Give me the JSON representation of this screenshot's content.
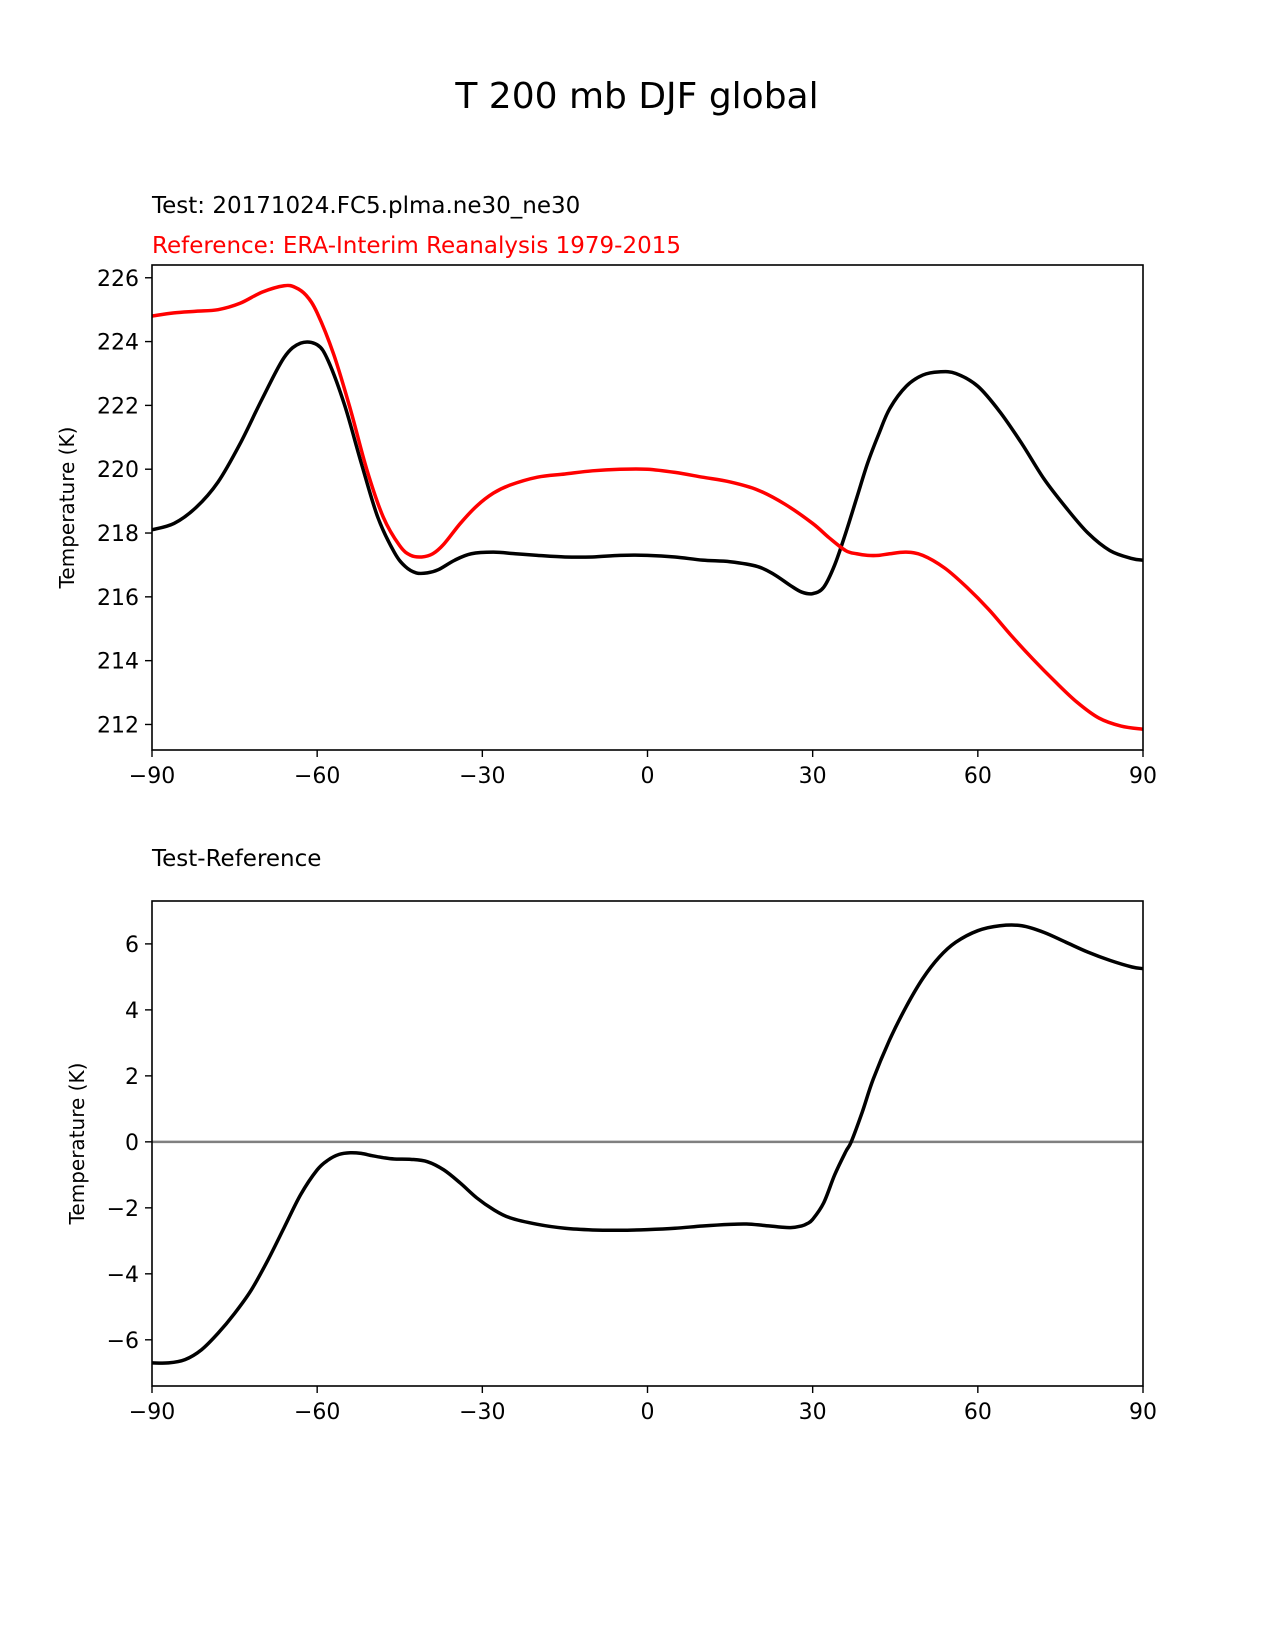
{
  "figure_title": "T 200 mb DJF global",
  "chart_data": [
    {
      "type": "line",
      "title_test": "Test: 20171024.FC5.plma.ne30_ne30",
      "title_reference": "Reference: ERA-Interim Reanalysis 1979-2015",
      "xlabel": "",
      "ylabel": "Temperature (K)",
      "xlim": [
        -90,
        90
      ],
      "ylim": [
        211.2,
        226.4
      ],
      "xticks": [
        -90,
        -60,
        -30,
        0,
        30,
        60,
        90
      ],
      "xtick_labels": [
        "−90",
        "−60",
        "−30",
        "0",
        "30",
        "60",
        "90"
      ],
      "yticks": [
        212,
        214,
        216,
        218,
        220,
        222,
        224,
        226
      ],
      "ytick_labels": [
        "212",
        "214",
        "216",
        "218",
        "220",
        "222",
        "224",
        "226"
      ],
      "series": [
        {
          "name": "Test",
          "color": "#000000",
          "x": [
            -90,
            -86,
            -82,
            -78,
            -74,
            -70,
            -66,
            -63,
            -60,
            -58,
            -55,
            -52,
            -49,
            -46,
            -44,
            -42,
            -40,
            -38,
            -35,
            -32,
            -28,
            -24,
            -20,
            -15,
            -10,
            -5,
            0,
            5,
            10,
            15,
            20,
            23,
            26,
            28,
            30,
            32,
            34,
            36,
            38,
            40,
            42,
            44,
            47,
            50,
            53,
            56,
            60,
            64,
            68,
            72,
            76,
            80,
            84,
            88,
            90
          ],
          "y": [
            218.1,
            218.3,
            218.8,
            219.6,
            220.8,
            222.2,
            223.5,
            223.95,
            223.9,
            223.4,
            222.0,
            220.2,
            218.5,
            217.4,
            216.95,
            216.75,
            216.75,
            216.85,
            217.15,
            217.35,
            217.4,
            217.35,
            217.3,
            217.25,
            217.25,
            217.3,
            217.3,
            217.25,
            217.15,
            217.1,
            216.95,
            216.7,
            216.35,
            216.15,
            216.1,
            216.3,
            217.0,
            218.0,
            219.1,
            220.2,
            221.1,
            221.9,
            222.6,
            222.95,
            223.05,
            223.0,
            222.6,
            221.8,
            220.8,
            219.7,
            218.8,
            218.0,
            217.45,
            217.2,
            217.15
          ]
        },
        {
          "name": "Reference",
          "color": "#ff0000",
          "x": [
            -90,
            -86,
            -82,
            -78,
            -74,
            -70,
            -66,
            -64,
            -62,
            -60,
            -57,
            -54,
            -51,
            -48,
            -45,
            -43,
            -41,
            -39,
            -37,
            -34,
            -31,
            -28,
            -25,
            -20,
            -15,
            -10,
            -5,
            0,
            5,
            10,
            15,
            20,
            25,
            30,
            33,
            36,
            38,
            40,
            42,
            44,
            47,
            50,
            54,
            58,
            62,
            66,
            70,
            74,
            78,
            82,
            86,
            90
          ],
          "y": [
            224.8,
            224.9,
            224.95,
            225.0,
            225.2,
            225.55,
            225.75,
            225.7,
            225.45,
            224.9,
            223.6,
            221.9,
            220.0,
            218.5,
            217.6,
            217.3,
            217.25,
            217.35,
            217.65,
            218.3,
            218.85,
            219.25,
            219.5,
            219.75,
            219.85,
            219.95,
            220.0,
            220.0,
            219.9,
            219.75,
            219.6,
            219.35,
            218.9,
            218.3,
            217.85,
            217.45,
            217.35,
            217.3,
            217.3,
            217.35,
            217.4,
            217.3,
            216.9,
            216.3,
            215.6,
            214.8,
            214.05,
            213.35,
            212.7,
            212.2,
            211.95,
            211.85
          ]
        }
      ]
    },
    {
      "type": "line",
      "title": "Test-Reference",
      "xlabel": "",
      "ylabel": "Temperature (K)",
      "xlim": [
        -90,
        90
      ],
      "ylim": [
        -7.4,
        7.3
      ],
      "xticks": [
        -90,
        -60,
        -30,
        0,
        30,
        60,
        90
      ],
      "xtick_labels": [
        "−90",
        "−60",
        "−30",
        "0",
        "30",
        "60",
        "90"
      ],
      "yticks": [
        -6,
        -4,
        -2,
        0,
        2,
        4,
        6
      ],
      "ytick_labels": [
        "−6",
        "−4",
        "−2",
        "0",
        "2",
        "4",
        "6"
      ],
      "zero_line_color": "#808080",
      "series": [
        {
          "name": "Test-Reference",
          "color": "#000000",
          "x": [
            -90,
            -87,
            -84,
            -81,
            -78,
            -75,
            -72,
            -69,
            -66,
            -63,
            -60,
            -58,
            -56,
            -54,
            -52,
            -50,
            -48,
            -46,
            -43,
            -40,
            -37,
            -34,
            -31,
            -28,
            -25,
            -20,
            -15,
            -10,
            -5,
            0,
            5,
            10,
            15,
            18,
            21,
            24,
            26,
            28,
            29,
            30,
            32,
            34,
            36,
            37,
            39,
            41,
            44,
            47,
            50,
            53,
            56,
            60,
            64,
            68,
            72,
            76,
            80,
            84,
            88,
            90
          ],
          "y": [
            -6.7,
            -6.7,
            -6.6,
            -6.3,
            -5.8,
            -5.2,
            -4.5,
            -3.6,
            -2.6,
            -1.6,
            -0.85,
            -0.55,
            -0.38,
            -0.33,
            -0.35,
            -0.42,
            -0.48,
            -0.52,
            -0.53,
            -0.6,
            -0.85,
            -1.25,
            -1.7,
            -2.05,
            -2.3,
            -2.5,
            -2.62,
            -2.67,
            -2.68,
            -2.66,
            -2.62,
            -2.55,
            -2.5,
            -2.49,
            -2.53,
            -2.58,
            -2.6,
            -2.55,
            -2.48,
            -2.35,
            -1.85,
            -1.0,
            -0.3,
            0.0,
            0.9,
            1.9,
            3.1,
            4.1,
            4.95,
            5.6,
            6.05,
            6.4,
            6.55,
            6.55,
            6.35,
            6.05,
            5.75,
            5.5,
            5.3,
            5.25
          ]
        }
      ]
    }
  ]
}
